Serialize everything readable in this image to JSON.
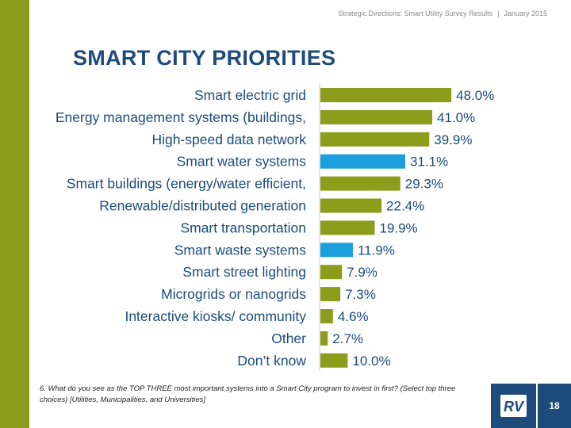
{
  "header": {
    "subtitle": "Strategic Directions: Smart Utility Survey Results",
    "separator": "|",
    "date": "January 2015"
  },
  "colors": {
    "sidebar": "#8c9c1b",
    "bar_default": "#8c9c1b",
    "bar_highlight": "#1a9edc",
    "title": "#1d4b7c",
    "logo_bg": "#1d4b7c"
  },
  "chart_data": {
    "type": "bar",
    "orientation": "horizontal",
    "title": "SMART CITY PRIORITIES",
    "categories": [
      "Smart electric grid",
      "Energy management systems (buildings,",
      "High-speed data network",
      "Smart water systems",
      "Smart buildings (energy/water efficient,",
      "Renewable/distributed generation",
      "Smart transportation",
      "Smart waste systems",
      "Smart street lighting",
      "Microgrids or nanogrids",
      "Interactive kiosks/ community",
      "Other",
      "Don’t know"
    ],
    "values": [
      48.0,
      41.0,
      39.9,
      31.1,
      29.3,
      22.4,
      19.9,
      11.9,
      7.9,
      7.3,
      4.6,
      2.7,
      10.0
    ],
    "value_labels": [
      "48.0%",
      "41.0%",
      "39.9%",
      "31.1%",
      "29.3%",
      "22.4%",
      "19.9%",
      "11.9%",
      "7.9%",
      "7.3%",
      "4.6%",
      "2.7%",
      "10.0%"
    ],
    "highlighted": [
      false,
      false,
      false,
      true,
      false,
      false,
      false,
      true,
      false,
      false,
      false,
      false,
      false
    ],
    "xlim": [
      0,
      60
    ],
    "xlabel": "",
    "ylabel": "",
    "grid": false,
    "unit": "%"
  },
  "footnote": "6. What do you see as the TOP THREE most important  systems into a Smart City program to invest in first? (Select top three choices) [Utilities, Municipalities, and Universities]",
  "logo": {
    "text": "RV"
  },
  "page_number": "18"
}
